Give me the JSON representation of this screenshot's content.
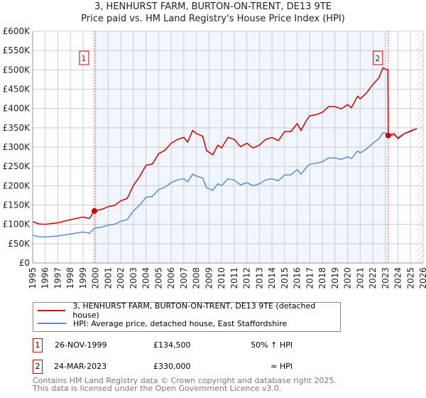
{
  "chart_data": {
    "type": "line",
    "title": "3, HENHURST FARM, BURTON-ON-TRENT, DE13 9TE",
    "subtitle": "Price paid vs. HM Land Registry's House Price Index (HPI)",
    "xlim": [
      1995,
      2026
    ],
    "ylim": [
      0,
      600000
    ],
    "y_ticks": [
      {
        "v": 0,
        "l": "£0"
      },
      {
        "v": 50000,
        "l": "£50K"
      },
      {
        "v": 100000,
        "l": "£100K"
      },
      {
        "v": 150000,
        "l": "£150K"
      },
      {
        "v": 200000,
        "l": "£200K"
      },
      {
        "v": 250000,
        "l": "£250K"
      },
      {
        "v": 300000,
        "l": "£300K"
      },
      {
        "v": 350000,
        "l": "£350K"
      },
      {
        "v": 400000,
        "l": "£400K"
      },
      {
        "v": 450000,
        "l": "£450K"
      },
      {
        "v": 500000,
        "l": "£500K"
      },
      {
        "v": 550000,
        "l": "£550K"
      },
      {
        "v": 600000,
        "l": "£600K"
      }
    ],
    "x_ticks": [
      "1995",
      "1996",
      "1997",
      "1998",
      "1999",
      "2000",
      "2001",
      "2002",
      "2003",
      "2004",
      "2005",
      "2006",
      "2007",
      "2008",
      "2009",
      "2010",
      "2011",
      "2012",
      "2013",
      "2014",
      "2015",
      "2016",
      "2017",
      "2018",
      "2019",
      "2020",
      "2021",
      "2022",
      "2023",
      "2024",
      "2025",
      "2026"
    ],
    "grid": true,
    "shaded_range": [
      1999.9,
      2023.23
    ],
    "forecast_from": 2025.5,
    "series": [
      {
        "name": "3, HENHURST FARM, BURTON-ON-TRENT, DE13 9TE (detached house)",
        "color": "#cc0000",
        "x": [
          1995,
          1995.5,
          1996,
          1997,
          1998,
          1999,
          1999.5,
          1999.9,
          2000.5,
          2001,
          2001.5,
          2002,
          2002.5,
          2003,
          2003.5,
          2004,
          2004.5,
          2005,
          2005.5,
          2006,
          2006.5,
          2007,
          2007.3,
          2007.7,
          2008,
          2008.5,
          2008.8,
          2009.3,
          2009.7,
          2010,
          2010.5,
          2011,
          2011.5,
          2012,
          2012.5,
          2013,
          2013.5,
          2014,
          2014.5,
          2015,
          2015.5,
          2016,
          2016.3,
          2016.8,
          2017,
          2017.5,
          2018,
          2018.5,
          2019,
          2019.5,
          2020,
          2020.3,
          2020.8,
          2021,
          2021.5,
          2022,
          2022.5,
          2022.8,
          2023.2,
          2023.23,
          2023.7,
          2024,
          2024.5,
          2025,
          2025.5
        ],
        "y": [
          107000,
          101000,
          100000,
          104000,
          112000,
          119000,
          115000,
          134500,
          139000,
          146000,
          149000,
          161000,
          167000,
          201000,
          224000,
          253000,
          256000,
          283000,
          292000,
          310000,
          320000,
          325000,
          313000,
          343000,
          335000,
          328000,
          291000,
          280000,
          305000,
          298000,
          325000,
          320000,
          301000,
          310000,
          298000,
          305000,
          320000,
          325000,
          317000,
          340000,
          340000,
          361000,
          343000,
          373000,
          381000,
          384000,
          390000,
          405000,
          405000,
          399000,
          410000,
          402000,
          432000,
          425000,
          440000,
          462000,
          480000,
          505000,
          500000,
          330000,
          335000,
          322000,
          335000,
          342000,
          348000
        ]
      },
      {
        "name": "HPI: Average price, detached house, East Staffordshire",
        "color": "#5b8fd4",
        "x": [
          1995,
          1995.5,
          1996,
          1997,
          1998,
          1999,
          1999.5,
          1999.9,
          2000.5,
          2001,
          2001.5,
          2002,
          2002.5,
          2003,
          2003.5,
          2004,
          2004.5,
          2005,
          2005.5,
          2006,
          2006.5,
          2007,
          2007.3,
          2007.7,
          2008,
          2008.5,
          2008.8,
          2009.3,
          2009.7,
          2010,
          2010.5,
          2011,
          2011.5,
          2012,
          2012.5,
          2013,
          2013.5,
          2014,
          2014.5,
          2015,
          2015.5,
          2016,
          2016.3,
          2016.8,
          2017,
          2017.5,
          2018,
          2018.5,
          2019,
          2019.5,
          2020,
          2020.3,
          2020.8,
          2021,
          2021.5,
          2022,
          2022.5,
          2022.8,
          2023.2,
          2023.23,
          2023.7,
          2024,
          2024.5,
          2025,
          2025.5
        ],
        "y": [
          72000,
          68000,
          67000,
          70000,
          75000,
          80000,
          77000,
          90000,
          93000,
          98000,
          100000,
          108000,
          112000,
          135000,
          150000,
          170000,
          172000,
          190000,
          196000,
          208000,
          215000,
          218000,
          210000,
          230000,
          225000,
          220000,
          195000,
          188000,
          205000,
          200000,
          218000,
          215000,
          202000,
          208000,
          200000,
          205000,
          215000,
          218000,
          213000,
          228000,
          228000,
          242000,
          230000,
          250000,
          256000,
          258000,
          262000,
          272000,
          272000,
          268000,
          275000,
          270000,
          290000,
          285000,
          295000,
          310000,
          322000,
          337000,
          335000,
          332000,
          330000,
          325000,
          335000,
          340000,
          348000
        ]
      }
    ],
    "sales": [
      {
        "n": "1",
        "x": 1999.9,
        "y": 134500
      },
      {
        "n": "2",
        "x": 2023.23,
        "y": 330000
      }
    ]
  },
  "sales_table": [
    {
      "n": "1",
      "date": "26-NOV-1999",
      "price": "£134,500",
      "hpi": "50% ↑ HPI"
    },
    {
      "n": "2",
      "date": "24-MAR-2023",
      "price": "£330,000",
      "hpi": "≈ HPI"
    }
  ],
  "footer": {
    "line1": "Contains HM Land Registry data © Crown copyright and database right 2025.",
    "line2": "This data is licensed under the Open Government Licence v3.0."
  }
}
